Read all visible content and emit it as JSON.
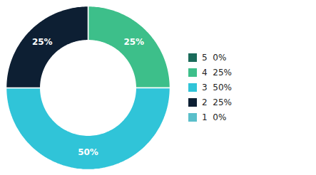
{
  "chart_data": {
    "type": "pie",
    "categories": [
      "5  0%",
      "4  25%",
      "3  50%",
      "2  25%",
      "1  0%"
    ],
    "values": [
      0,
      25,
      50,
      25,
      0
    ],
    "value_labels": [
      null,
      "25%",
      "50%",
      "25%",
      null
    ],
    "colors": [
      "#1a6b5a",
      "#3dbf8a",
      "#30c4d8",
      "#0d1f33",
      "#5abfca"
    ],
    "data_labels": true,
    "legend": "right"
  }
}
